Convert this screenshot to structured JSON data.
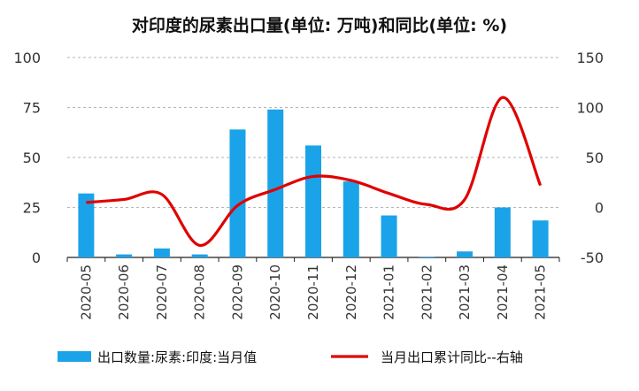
{
  "chart_data": {
    "type": "bar+line",
    "title": "对印度的尿素出口量(单位: 万吨)和同比(单位: %)",
    "categories": [
      "2020-05",
      "2020-06",
      "2020-07",
      "2020-08",
      "2020-09",
      "2020-10",
      "2020-11",
      "2020-12",
      "2021-01",
      "2021-02",
      "2021-03",
      "2021-04",
      "2021-05"
    ],
    "series": [
      {
        "name": "出口数量:尿素:印度:当月值",
        "type": "bar",
        "axis": "left",
        "color": "#1aa3e8",
        "values": [
          32,
          1.5,
          4.5,
          1.5,
          64,
          74,
          56,
          38,
          21,
          0.3,
          3,
          25,
          18.5
        ]
      },
      {
        "name": "当月出口累计同比--右轴",
        "type": "line",
        "axis": "right",
        "color": "#e00000",
        "values": [
          5,
          8,
          13,
          -38,
          2,
          18,
          31,
          27,
          14,
          3,
          8,
          110,
          22
        ]
      }
    ],
    "y_left": {
      "min": 0,
      "max": 100,
      "ticks": [
        0,
        25,
        50,
        75,
        100
      ]
    },
    "y_right": {
      "min": -50,
      "max": 150,
      "ticks": [
        -50,
        0,
        50,
        100,
        150
      ]
    },
    "grid": true,
    "legend_position": "bottom"
  }
}
